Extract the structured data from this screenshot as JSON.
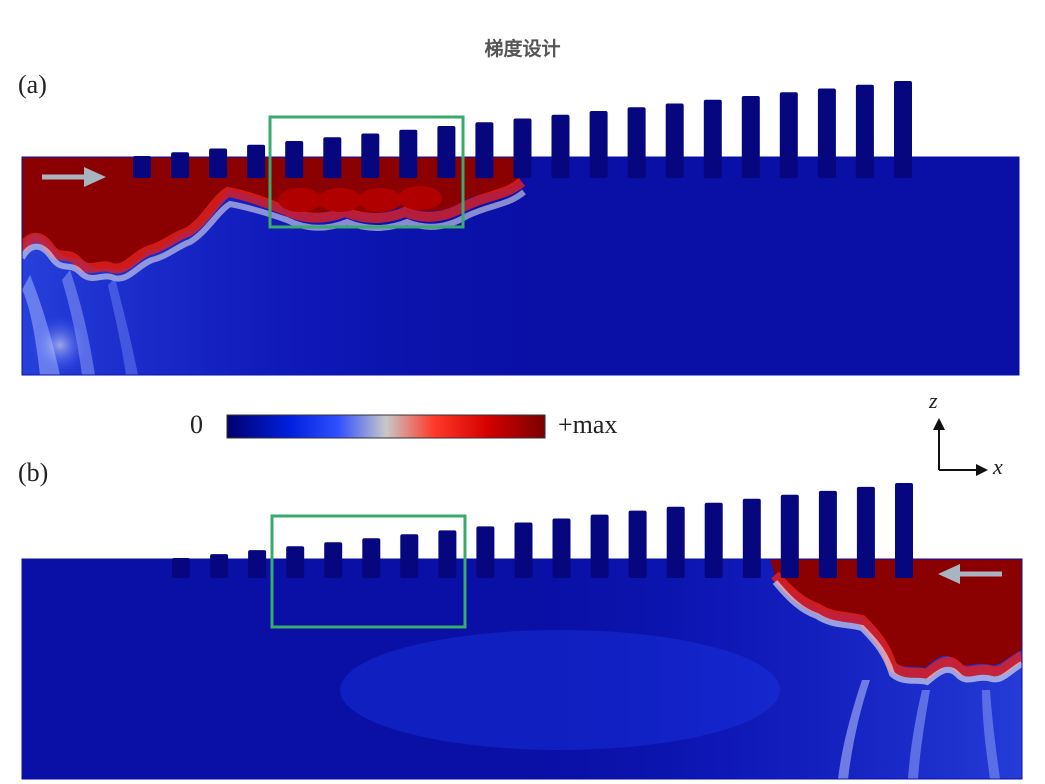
{
  "title": "梯度设计",
  "panels": [
    {
      "label": "(a)",
      "arrow_direction": "right"
    },
    {
      "label": "(b)",
      "arrow_direction": "left"
    }
  ],
  "colorbar": {
    "min_label": "0",
    "max_label": "+max",
    "stops": [
      "#00006e",
      "#0020e0",
      "#3050ff",
      "#c8c8c8",
      "#ff3a2a",
      "#d40000",
      "#7a0000"
    ]
  },
  "axes_indicator": {
    "z_label": "z",
    "x_label": "x"
  },
  "colors": {
    "substrate_blue": "#0a10a6",
    "pillar_blue": "#06067e",
    "field_red": "#8b0000",
    "highlight_box": "#3aaa6e",
    "arrow_gray": "#a8b4c0"
  }
}
